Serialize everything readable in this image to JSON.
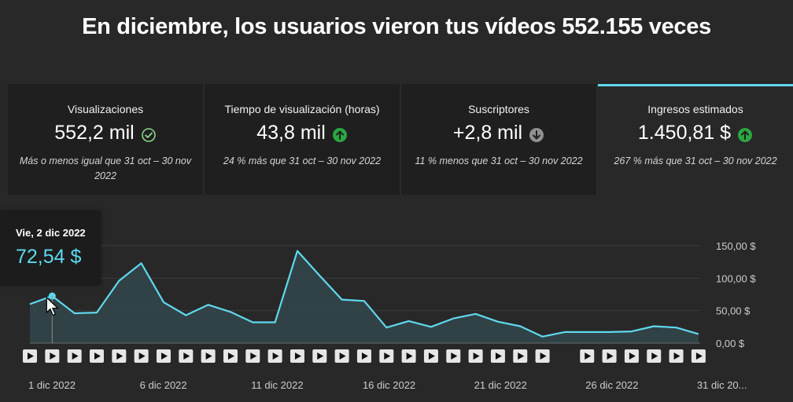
{
  "headline": "En diciembre, los usuarios vieron tus vídeos 552.155 veces",
  "cards": [
    {
      "label": "Visualizaciones",
      "value": "552,2 mil",
      "status_icon": "check-circle-icon",
      "status_color": "#8ad98a",
      "note": "Más o menos igual que 31 oct – 30 nov 2022",
      "active": false
    },
    {
      "label": "Tiempo de visualización (horas)",
      "value": "43,8 mil",
      "status_icon": "arrow-up-circle-icon",
      "status_color": "#2ba640",
      "note": "24 % más que 31 oct – 30 nov 2022",
      "active": false
    },
    {
      "label": "Suscriptores",
      "value": "+2,8 mil",
      "status_icon": "arrow-down-circle-icon",
      "status_color": "#909090",
      "note": "11 % menos que 31 oct – 30 nov 2022",
      "active": false
    },
    {
      "label": "Ingresos estimados",
      "value": "1.450,81 $",
      "status_icon": "arrow-up-circle-icon",
      "status_color": "#2ba640",
      "note": "267 % más que 31 oct – 30 nov 2022",
      "active": true
    }
  ],
  "tooltip": {
    "date": "Vie, 2 dic 2022",
    "value": "72,54 $"
  },
  "colors": {
    "line": "#5fd8ee",
    "area": "#33474b",
    "accent": "#5fd8ee"
  },
  "chart_data": {
    "type": "area",
    "x": [
      "1 dic 2022",
      "2 dic 2022",
      "3 dic 2022",
      "4 dic 2022",
      "5 dic 2022",
      "6 dic 2022",
      "7 dic 2022",
      "8 dic 2022",
      "9 dic 2022",
      "10 dic 2022",
      "11 dic 2022",
      "12 dic 2022",
      "13 dic 2022",
      "14 dic 2022",
      "15 dic 2022",
      "16 dic 2022",
      "17 dic 2022",
      "18 dic 2022",
      "19 dic 2022",
      "20 dic 2022",
      "21 dic 2022",
      "22 dic 2022",
      "23 dic 2022",
      "24 dic 2022",
      "25 dic 2022",
      "26 dic 2022",
      "27 dic 2022",
      "28 dic 2022",
      "29 dic 2022",
      "30 dic 2022",
      "31 dic 2022"
    ],
    "series": [
      {
        "values": [
          60,
          72.54,
          46,
          47,
          96,
          123,
          63,
          43,
          59,
          48,
          32,
          32,
          142,
          104,
          67,
          65,
          24,
          34,
          25,
          38,
          45,
          33,
          26,
          10,
          17,
          17,
          17,
          18,
          26,
          24,
          14
        ]
      }
    ],
    "ylim": [
      0,
      150
    ],
    "yticks": [
      "0,00 $",
      "50,00 $",
      "100,00 $",
      "150,00 $"
    ],
    "ytick_values": [
      0,
      50,
      100,
      150
    ],
    "xtick_labels": [
      "1 dic 2022",
      "6 dic 2022",
      "11 dic 2022",
      "16 dic 2022",
      "21 dic 2022",
      "26 dic 2022",
      "31 dic 20..."
    ],
    "xtick_indices": [
      0,
      5,
      10,
      15,
      20,
      25,
      30
    ],
    "highlight_index": 1,
    "video_marker_days": [
      1,
      2,
      3,
      4,
      5,
      6,
      7,
      8,
      9,
      10,
      11,
      12,
      13,
      14,
      15,
      16,
      17,
      18,
      19,
      20,
      21,
      22,
      23,
      24,
      26,
      27,
      28,
      29,
      30,
      31
    ],
    "grid": true,
    "legend": "none"
  }
}
